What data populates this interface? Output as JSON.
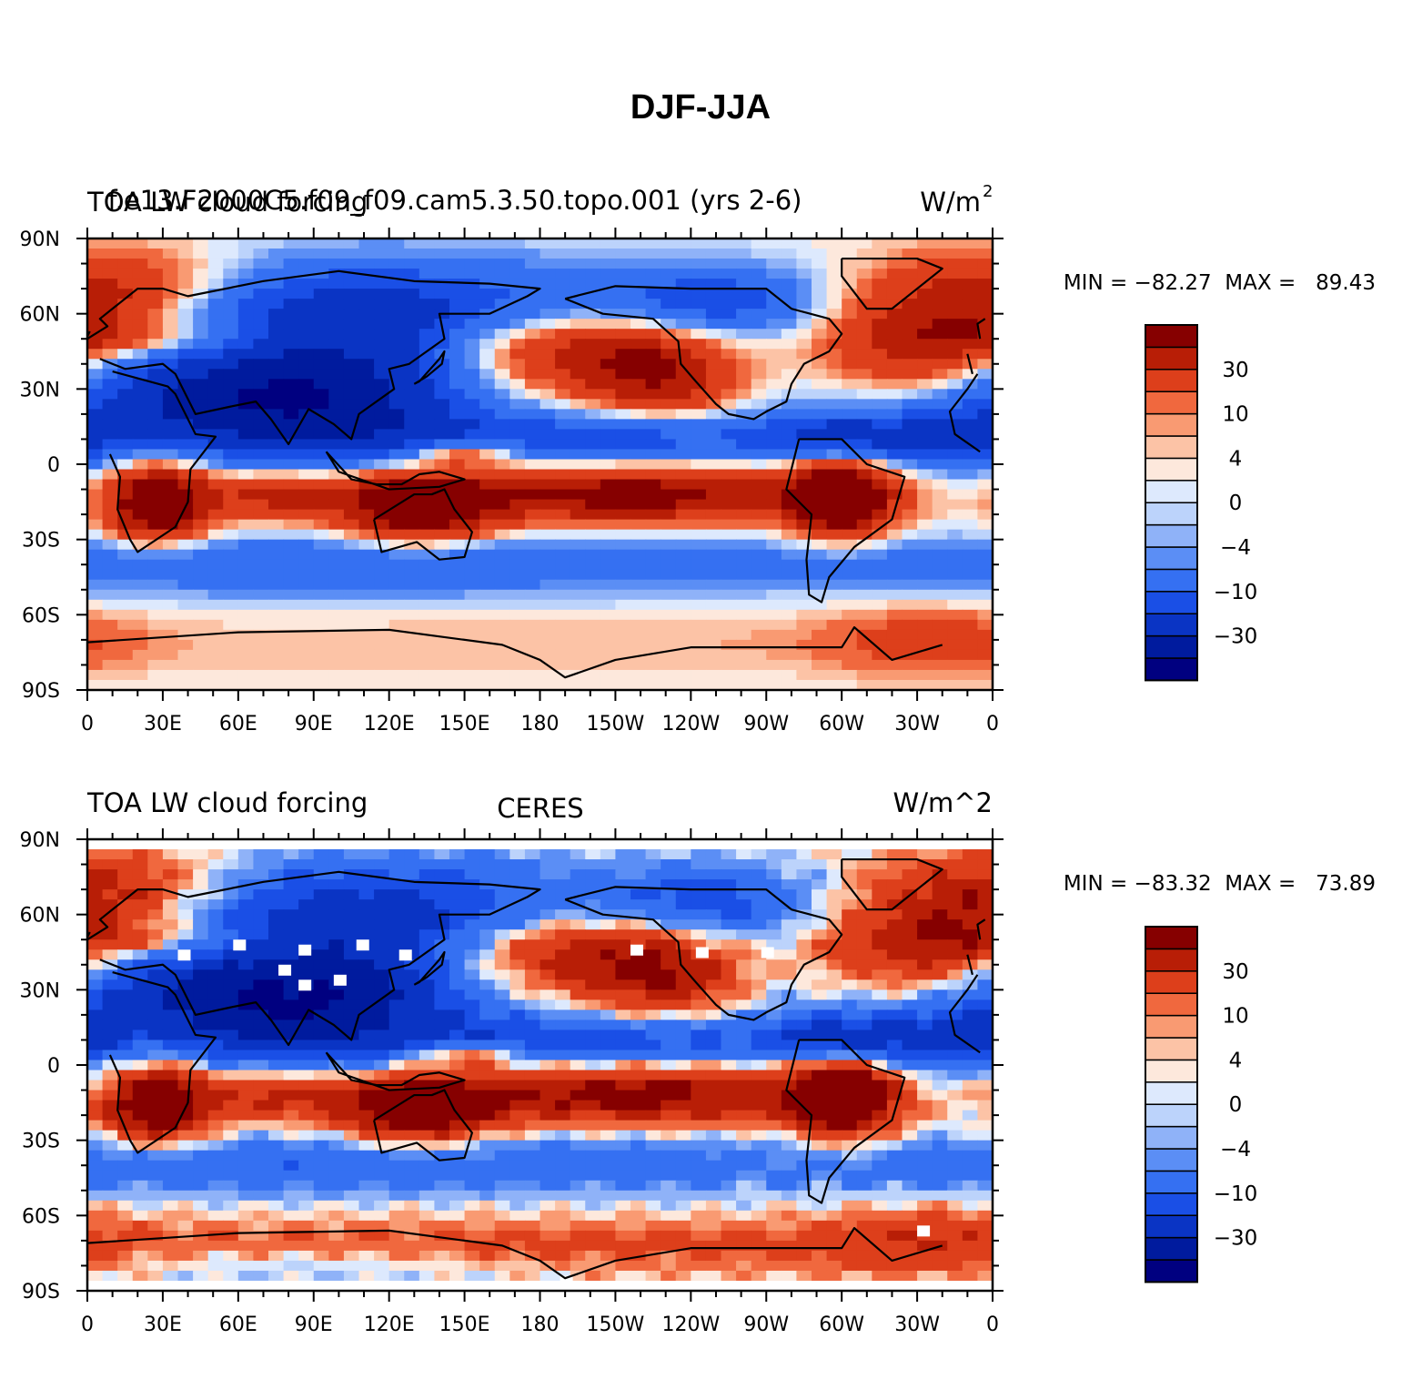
{
  "figure": {
    "title": "DJF-JJA"
  },
  "panels": [
    {
      "left_title": "TOA LW cloud forcing",
      "center_title": "f.e13.F2000C5.f09_f09.cam5.3.50.topo.001 (yrs 2-6)",
      "right_units": "W/m",
      "right_units_superscript": "2",
      "stats": "MIN = −82.27  MAX =   89.43",
      "missing_patches": false,
      "colorbar": {
        "colors": [
          "#000080",
          "#001b9e",
          "#0a34c4",
          "#1a4fe6",
          "#3570f2",
          "#5b8ef5",
          "#8fb2f8",
          "#bcd3fb",
          "#dde9fd",
          "#fde8dc",
          "#fcc3a6",
          "#f99a72",
          "#f0683e",
          "#dd3f1b",
          "#b81e06",
          "#860000"
        ],
        "tick_labels": [
          "−30",
          "−10",
          "−4",
          "0",
          "4",
          "10",
          "30"
        ]
      }
    },
    {
      "left_title": "TOA LW cloud forcing",
      "center_title": "CERES",
      "right_units": "W/m^2",
      "right_units_superscript": "",
      "stats": "MIN = −83.32  MAX =   73.89",
      "missing_patches": true,
      "colorbar": {
        "colors": [
          "#000080",
          "#001b9e",
          "#0a34c4",
          "#1a4fe6",
          "#3570f2",
          "#5b8ef5",
          "#8fb2f8",
          "#bcd3fb",
          "#dde9fd",
          "#fde8dc",
          "#fcc3a6",
          "#f99a72",
          "#f0683e",
          "#dd3f1b",
          "#b81e06",
          "#860000"
        ],
        "tick_labels": [
          "−30",
          "−10",
          "−4",
          "0",
          "4",
          "10",
          "30"
        ]
      }
    }
  ],
  "axes": {
    "lat_labels": [
      "90N",
      "60N",
      "30N",
      "0",
      "30S",
      "60S",
      "90S"
    ],
    "lon_labels": [
      "0",
      "30E",
      "60E",
      "90E",
      "120E",
      "150E",
      "180",
      "150W",
      "120W",
      "90W",
      "60W",
      "30W",
      "0"
    ]
  },
  "chart_data": {
    "type": "heatmap",
    "title": "DJF-JJA",
    "field": "TOA LW cloud forcing",
    "units": "W/m^2",
    "contour_levels": [
      -30,
      -10,
      -4,
      0,
      4,
      10,
      30
    ],
    "xlim": [
      0,
      360
    ],
    "ylim": [
      -90,
      90
    ],
    "x_ticks": [
      "0",
      "30E",
      "60E",
      "90E",
      "120E",
      "150E",
      "180",
      "150W",
      "120W",
      "90W",
      "60W",
      "30W",
      "0"
    ],
    "y_ticks": [
      "90N",
      "60N",
      "30N",
      "0",
      "30S",
      "60S",
      "90S"
    ],
    "series": [
      {
        "name": "f.e13.F2000C5.f09_f09.cam5.3.50.topo.001 (yrs 2-6)",
        "min": -82.27,
        "max": 89.43
      },
      {
        "name": "CERES",
        "min": -83.32,
        "max": 73.89
      }
    ]
  }
}
